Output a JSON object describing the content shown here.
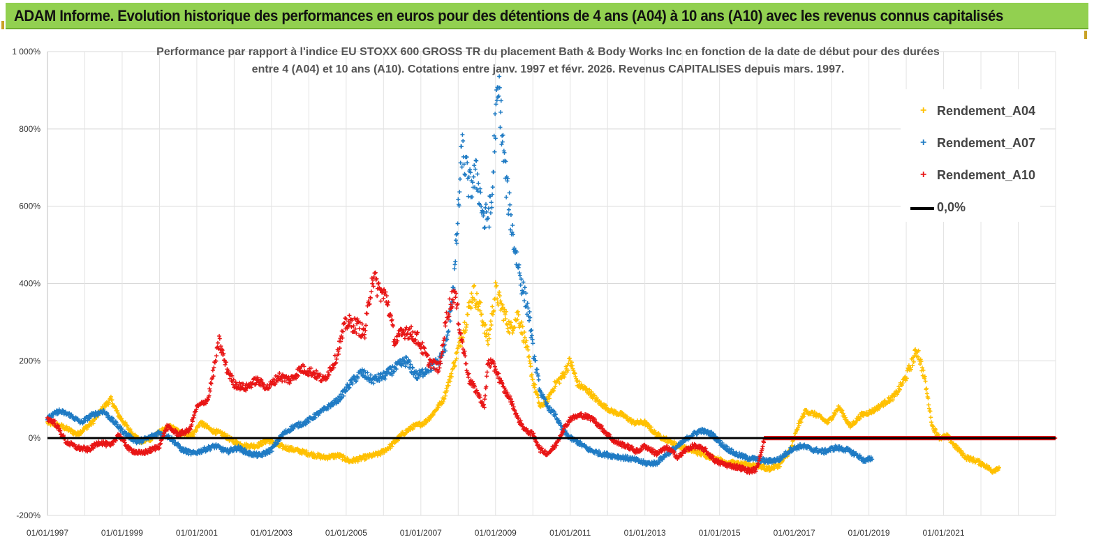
{
  "banner": {
    "title": "ADAM Informe. Evolution historique des performances en euros pour des détentions de 4 ans (A04) à 10 ans (A10) avec les revenus connus capitalisés",
    "color": "#92d050"
  },
  "chart_data": {
    "type": "scatter",
    "title_line1": "Performance par rapport à l'indice EU STOXX 600 GROSS TR  du placement Bath & Body Works Inc en fonction de la date de début pour des durées",
    "title_line2": "entre 4 (A04) et 10 ans (A10).  Cotations entre janv. 1997 et févr. 2026. Revenus CAPITALISES depuis mars. 1997.",
    "ylabel": "",
    "xlabel": "",
    "ylim": [
      -200,
      1000
    ],
    "xlim": [
      1997.0,
      2024.0
    ],
    "y_ticks": [
      1000,
      800,
      600,
      400,
      200,
      0,
      -200
    ],
    "y_tick_labels": [
      "1 000%",
      "800%",
      "600%",
      "400%",
      "200%",
      "0%",
      "-200%"
    ],
    "x_tick_years": [
      1997,
      1999,
      2001,
      2003,
      2005,
      2007,
      2009,
      2011,
      2013,
      2015,
      2017,
      2019,
      2021
    ],
    "x_tick_labels": [
      "01/01/1997",
      "01/01/1999",
      "01/01/2001",
      "01/01/2003",
      "01/01/2005",
      "01/01/2007",
      "01/01/2009",
      "01/01/2011",
      "01/01/2013",
      "01/01/2015",
      "01/01/2017",
      "01/01/2019",
      "01/01/2021"
    ],
    "grid": true,
    "legend_position": "top-right",
    "series": [
      {
        "name": "Rendement_A04",
        "color": "#ffc000",
        "marker": "+",
        "points": [
          [
            1997.0,
            40
          ],
          [
            1997.4,
            30
          ],
          [
            1997.8,
            10
          ],
          [
            1998.2,
            40
          ],
          [
            1998.5,
            80
          ],
          [
            1998.7,
            100
          ],
          [
            1998.9,
            60
          ],
          [
            1999.2,
            20
          ],
          [
            1999.5,
            -10
          ],
          [
            1999.8,
            0
          ],
          [
            2000.0,
            15
          ],
          [
            2000.3,
            30
          ],
          [
            2000.6,
            10
          ],
          [
            2000.9,
            10
          ],
          [
            2001.1,
            40
          ],
          [
            2001.4,
            20
          ],
          [
            2001.7,
            10
          ],
          [
            2002.0,
            -10
          ],
          [
            2002.3,
            -20
          ],
          [
            2002.6,
            -20
          ],
          [
            2002.9,
            -5
          ],
          [
            2003.2,
            -20
          ],
          [
            2003.6,
            -30
          ],
          [
            2004.0,
            -40
          ],
          [
            2004.4,
            -50
          ],
          [
            2004.8,
            -45
          ],
          [
            2005.1,
            -60
          ],
          [
            2005.5,
            -50
          ],
          [
            2005.9,
            -40
          ],
          [
            2006.2,
            -20
          ],
          [
            2006.5,
            10
          ],
          [
            2006.8,
            30
          ],
          [
            2007.1,
            40
          ],
          [
            2007.3,
            60
          ],
          [
            2007.6,
            100
          ],
          [
            2007.8,
            160
          ],
          [
            2008.0,
            230
          ],
          [
            2008.2,
            300
          ],
          [
            2008.4,
            380
          ],
          [
            2008.6,
            330
          ],
          [
            2008.8,
            250
          ],
          [
            2009.0,
            380
          ],
          [
            2009.2,
            330
          ],
          [
            2009.4,
            280
          ],
          [
            2009.6,
            320
          ],
          [
            2009.8,
            250
          ],
          [
            2010.0,
            150
          ],
          [
            2010.2,
            80
          ],
          [
            2010.4,
            100
          ],
          [
            2010.6,
            140
          ],
          [
            2010.8,
            160
          ],
          [
            2011.0,
            200
          ],
          [
            2011.2,
            140
          ],
          [
            2011.5,
            120
          ],
          [
            2011.8,
            90
          ],
          [
            2012.1,
            70
          ],
          [
            2012.4,
            60
          ],
          [
            2012.7,
            40
          ],
          [
            2013.0,
            40
          ],
          [
            2013.3,
            10
          ],
          [
            2013.6,
            -5
          ],
          [
            2013.9,
            -20
          ],
          [
            2014.2,
            -30
          ],
          [
            2014.5,
            -40
          ],
          [
            2014.8,
            -50
          ],
          [
            2015.1,
            -60
          ],
          [
            2015.4,
            -65
          ],
          [
            2015.7,
            -70
          ],
          [
            2016.0,
            -70
          ],
          [
            2016.3,
            -80
          ],
          [
            2016.6,
            -70
          ],
          [
            2016.9,
            -30
          ],
          [
            2017.1,
            30
          ],
          [
            2017.3,
            70
          ],
          [
            2017.6,
            60
          ],
          [
            2017.9,
            40
          ],
          [
            2018.2,
            80
          ],
          [
            2018.5,
            30
          ],
          [
            2018.8,
            60
          ],
          [
            2019.1,
            70
          ],
          [
            2019.4,
            90
          ],
          [
            2019.7,
            110
          ],
          [
            2020.0,
            160
          ],
          [
            2020.3,
            230
          ],
          [
            2020.5,
            150
          ],
          [
            2020.7,
            30
          ],
          [
            2020.9,
            0
          ],
          [
            2021.1,
            5
          ],
          [
            2021.3,
            -20
          ],
          [
            2021.6,
            -50
          ],
          [
            2021.9,
            -60
          ],
          [
            2022.1,
            -70
          ],
          [
            2022.3,
            -85
          ],
          [
            2022.5,
            -75
          ]
        ]
      },
      {
        "name": "Rendement_A07",
        "color": "#1f7bc4",
        "marker": "+",
        "points": [
          [
            1997.0,
            50
          ],
          [
            1997.3,
            70
          ],
          [
            1997.6,
            60
          ],
          [
            1997.9,
            40
          ],
          [
            1998.2,
            60
          ],
          [
            1998.5,
            70
          ],
          [
            1998.8,
            40
          ],
          [
            1999.1,
            10
          ],
          [
            1999.4,
            -10
          ],
          [
            1999.7,
            0
          ],
          [
            2000.0,
            15
          ],
          [
            2000.3,
            0
          ],
          [
            2000.6,
            -30
          ],
          [
            2000.9,
            -40
          ],
          [
            2001.2,
            -30
          ],
          [
            2001.5,
            -20
          ],
          [
            2001.8,
            -35
          ],
          [
            2002.1,
            -25
          ],
          [
            2002.4,
            -40
          ],
          [
            2002.7,
            -45
          ],
          [
            2003.0,
            -30
          ],
          [
            2003.3,
            10
          ],
          [
            2003.6,
            30
          ],
          [
            2003.9,
            40
          ],
          [
            2004.2,
            60
          ],
          [
            2004.5,
            80
          ],
          [
            2004.8,
            100
          ],
          [
            2005.1,
            140
          ],
          [
            2005.4,
            170
          ],
          [
            2005.7,
            150
          ],
          [
            2006.0,
            160
          ],
          [
            2006.3,
            180
          ],
          [
            2006.6,
            200
          ],
          [
            2006.9,
            160
          ],
          [
            2007.2,
            180
          ],
          [
            2007.5,
            200
          ],
          [
            2007.7,
            250
          ],
          [
            2007.9,
            420
          ],
          [
            2008.0,
            580
          ],
          [
            2008.1,
            750
          ],
          [
            2008.3,
            650
          ],
          [
            2008.5,
            680
          ],
          [
            2008.7,
            560
          ],
          [
            2008.9,
            600
          ],
          [
            2009.0,
            830
          ],
          [
            2009.1,
            900
          ],
          [
            2009.2,
            750
          ],
          [
            2009.3,
            650
          ],
          [
            2009.5,
            500
          ],
          [
            2009.7,
            400
          ],
          [
            2009.9,
            320
          ],
          [
            2010.0,
            230
          ],
          [
            2010.2,
            120
          ],
          [
            2010.4,
            80
          ],
          [
            2010.6,
            60
          ],
          [
            2010.8,
            20
          ],
          [
            2011.0,
            0
          ],
          [
            2011.2,
            -10
          ],
          [
            2011.5,
            -30
          ],
          [
            2011.8,
            -40
          ],
          [
            2012.1,
            -45
          ],
          [
            2012.4,
            -50
          ],
          [
            2012.7,
            -55
          ],
          [
            2013.0,
            -65
          ],
          [
            2013.3,
            -65
          ],
          [
            2013.6,
            -40
          ],
          [
            2013.9,
            -20
          ],
          [
            2014.2,
            5
          ],
          [
            2014.5,
            20
          ],
          [
            2014.8,
            10
          ],
          [
            2015.1,
            -20
          ],
          [
            2015.4,
            -40
          ],
          [
            2015.7,
            -50
          ],
          [
            2016.0,
            -55
          ],
          [
            2016.3,
            -60
          ],
          [
            2016.6,
            -55
          ],
          [
            2016.9,
            -30
          ],
          [
            2017.2,
            -20
          ],
          [
            2017.5,
            -30
          ],
          [
            2017.8,
            -35
          ],
          [
            2018.1,
            -25
          ],
          [
            2018.4,
            -30
          ],
          [
            2018.7,
            -45
          ],
          [
            2018.9,
            -60
          ],
          [
            2019.1,
            -50
          ]
        ]
      },
      {
        "name": "Rendement_A10",
        "color": "#e81515",
        "marker": "+",
        "points": [
          [
            1997.0,
            50
          ],
          [
            1997.2,
            40
          ],
          [
            1997.5,
            -10
          ],
          [
            1997.8,
            -25
          ],
          [
            1998.1,
            -30
          ],
          [
            1998.4,
            -10
          ],
          [
            1998.7,
            -20
          ],
          [
            1998.9,
            10
          ],
          [
            1999.2,
            -30
          ],
          [
            1999.5,
            -40
          ],
          [
            1999.8,
            -30
          ],
          [
            2000.0,
            -20
          ],
          [
            2000.2,
            30
          ],
          [
            2000.5,
            10
          ],
          [
            2000.8,
            20
          ],
          [
            2001.0,
            80
          ],
          [
            2001.3,
            100
          ],
          [
            2001.5,
            200
          ],
          [
            2001.6,
            250
          ],
          [
            2001.8,
            180
          ],
          [
            2002.0,
            140
          ],
          [
            2002.3,
            130
          ],
          [
            2002.6,
            150
          ],
          [
            2002.9,
            130
          ],
          [
            2003.2,
            160
          ],
          [
            2003.5,
            150
          ],
          [
            2003.8,
            180
          ],
          [
            2004.1,
            170
          ],
          [
            2004.4,
            150
          ],
          [
            2004.7,
            200
          ],
          [
            2005.0,
            300
          ],
          [
            2005.3,
            290
          ],
          [
            2005.5,
            270
          ],
          [
            2005.7,
            420
          ],
          [
            2005.9,
            380
          ],
          [
            2006.1,
            360
          ],
          [
            2006.3,
            250
          ],
          [
            2006.6,
            280
          ],
          [
            2006.9,
            260
          ],
          [
            2007.2,
            200
          ],
          [
            2007.5,
            180
          ],
          [
            2007.7,
            320
          ],
          [
            2007.9,
            380
          ],
          [
            2008.1,
            250
          ],
          [
            2008.3,
            150
          ],
          [
            2008.5,
            120
          ],
          [
            2008.7,
            80
          ],
          [
            2008.8,
            200
          ],
          [
            2009.0,
            180
          ],
          [
            2009.2,
            130
          ],
          [
            2009.4,
            100
          ],
          [
            2009.6,
            50
          ],
          [
            2009.8,
            20
          ],
          [
            2010.0,
            10
          ],
          [
            2010.2,
            -30
          ],
          [
            2010.4,
            -40
          ],
          [
            2010.6,
            -20
          ],
          [
            2010.8,
            20
          ],
          [
            2011.0,
            50
          ],
          [
            2011.3,
            60
          ],
          [
            2011.6,
            50
          ],
          [
            2011.9,
            20
          ],
          [
            2012.2,
            -10
          ],
          [
            2012.5,
            -20
          ],
          [
            2012.8,
            -35
          ],
          [
            2013.0,
            -20
          ],
          [
            2013.3,
            -40
          ],
          [
            2013.6,
            -25
          ],
          [
            2013.9,
            -50
          ],
          [
            2014.1,
            -30
          ],
          [
            2014.3,
            -20
          ],
          [
            2014.6,
            -30
          ],
          [
            2014.9,
            -60
          ],
          [
            2015.2,
            -70
          ],
          [
            2015.5,
            -75
          ],
          [
            2015.8,
            -85
          ],
          [
            2016.0,
            -80
          ],
          [
            2016.2,
            0
          ],
          [
            2016.6,
            0
          ],
          [
            2017.0,
            0
          ],
          [
            2017.5,
            0
          ],
          [
            2018.0,
            0
          ],
          [
            2018.5,
            0
          ],
          [
            2019.0,
            0
          ],
          [
            2019.5,
            0
          ],
          [
            2020.0,
            0
          ],
          [
            2020.5,
            0
          ],
          [
            2021.0,
            0
          ],
          [
            2021.5,
            0
          ],
          [
            2022.0,
            0
          ],
          [
            2022.5,
            0
          ],
          [
            2023.0,
            0
          ],
          [
            2023.5,
            0
          ],
          [
            2024.0,
            0
          ]
        ]
      },
      {
        "name": "0,0%",
        "color": "#000000",
        "type": "line",
        "points": [
          [
            1997.0,
            0
          ],
          [
            2024.0,
            0
          ]
        ]
      }
    ]
  }
}
